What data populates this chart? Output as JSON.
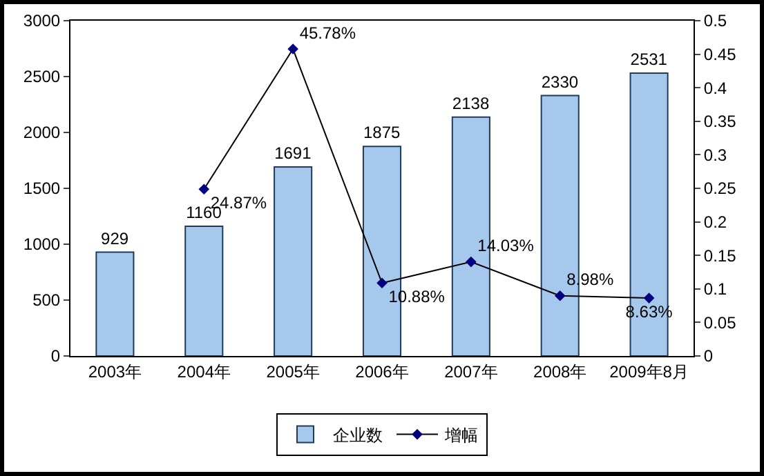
{
  "chart_data": {
    "type": "bar",
    "categories": [
      "2003年",
      "2004年",
      "2005年",
      "2006年",
      "2007年",
      "2008年",
      "2009年8月"
    ],
    "series": [
      {
        "name": "企业数",
        "color": "#a6c8ec",
        "values": [
          929,
          1160,
          1691,
          1875,
          2138,
          2330,
          2531
        ],
        "value_labels": [
          "929",
          "1160",
          "1691",
          "1875",
          "2138",
          "2330",
          "2531"
        ]
      },
      {
        "name": "增幅",
        "type": "line",
        "axis": "y2",
        "color": "#000080",
        "values": [
          null,
          0.2487,
          0.4578,
          0.1088,
          0.1403,
          0.0898,
          0.0863
        ],
        "value_labels": [
          null,
          "24.87%",
          "45.78%",
          "10.88%",
          "14.03%",
          "8.98%",
          "8.63%"
        ]
      }
    ],
    "ylim": [
      0,
      3000
    ],
    "yticks": [
      0,
      500,
      1000,
      1500,
      2000,
      2500,
      3000
    ],
    "y2lim": [
      0,
      0.5
    ],
    "y2ticks": [
      0,
      0.05,
      0.1,
      0.15,
      0.2,
      0.25,
      0.3,
      0.35,
      0.4,
      0.45,
      0.5
    ],
    "grid": false,
    "legend": "bottom",
    "marker": "diamond",
    "line_style": "solid"
  }
}
